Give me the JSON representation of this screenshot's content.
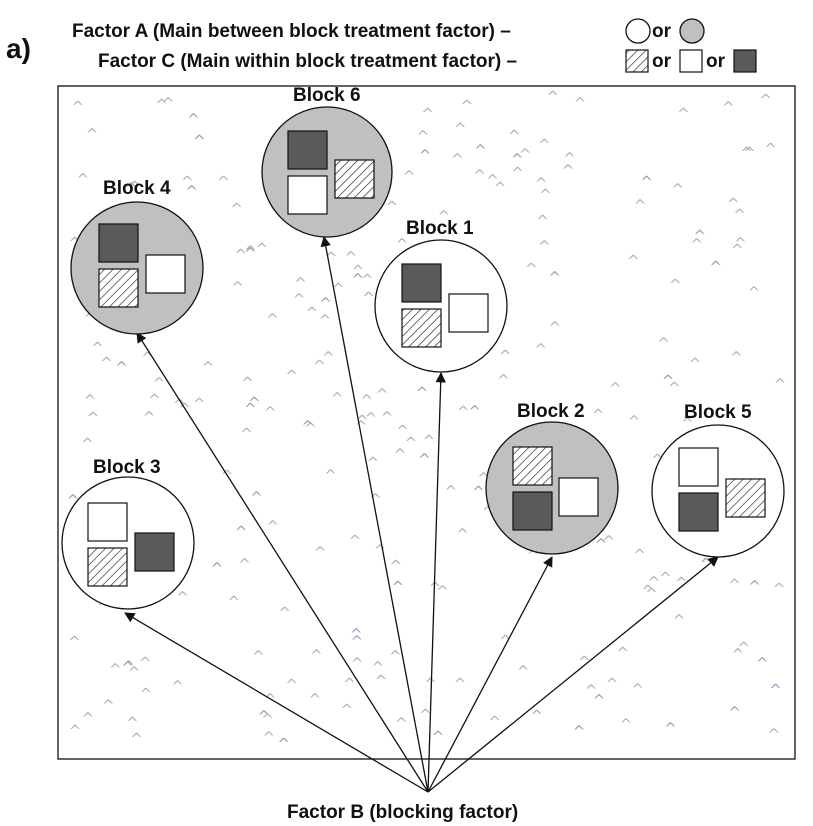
{
  "panel_label": "a)",
  "legend": {
    "factor_a": "Factor A (Main between block treatment factor) –",
    "factor_c": "Factor C (Main within block treatment factor) –",
    "or_word": "or"
  },
  "footer_label": "Factor B (blocking factor)",
  "colors": {
    "level_grey": "#c0c0c0",
    "level_white": "#ffffff",
    "plot_dark": "#5a5a5a",
    "tuft_grey": "#b4b4b4",
    "tuft_purple": "#a49ac4",
    "ink": "#111111"
  },
  "blocks": [
    {
      "id": "block-6",
      "label": "Block 6",
      "factor_a": "grey",
      "plots": [
        "dark",
        "hatched",
        "white"
      ]
    },
    {
      "id": "block-4",
      "label": "Block 4",
      "factor_a": "grey",
      "plots": [
        "dark",
        "hatched",
        "white"
      ]
    },
    {
      "id": "block-1",
      "label": "Block 1",
      "factor_a": "white",
      "plots": [
        "dark",
        "hatched",
        "white"
      ]
    },
    {
      "id": "block-2",
      "label": "Block 2",
      "factor_a": "grey",
      "plots": [
        "hatched",
        "dark",
        "white"
      ]
    },
    {
      "id": "block-5",
      "label": "Block 5",
      "factor_a": "white",
      "plots": [
        "white",
        "dark",
        "hatched"
      ]
    },
    {
      "id": "block-3",
      "label": "Block 3",
      "factor_a": "white",
      "plots": [
        "white",
        "hatched",
        "dark"
      ]
    }
  ],
  "tuft_glyph": "^"
}
